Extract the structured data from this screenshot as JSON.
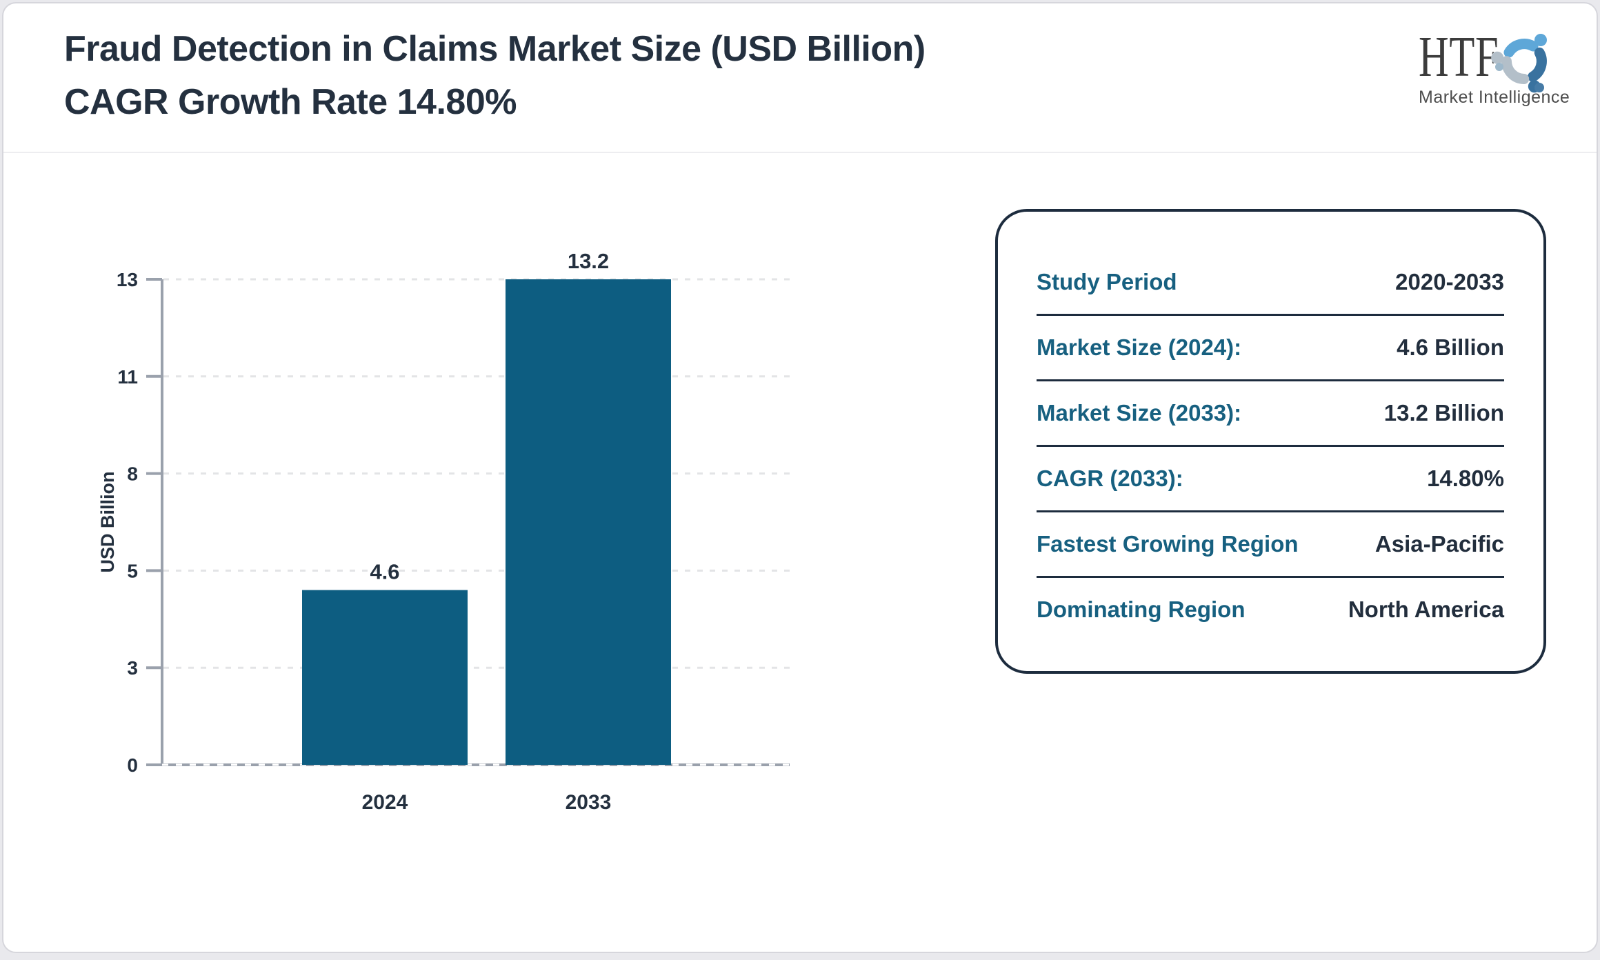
{
  "header": {
    "title": "Fraud Detection in Claims Market Size (USD Billion) CAGR Growth Rate 14.80%",
    "logo": {
      "text": "HTF",
      "subtext": "Market Intelligence",
      "colors": {
        "light_blue": "#5ea7d8",
        "steel_blue": "#39729f",
        "gray": "#b3bfc9"
      }
    }
  },
  "chart_data": {
    "type": "bar",
    "title": "Fraud Detection in Claims Market Size (USD Billion) CAGR Growth Rate 14.80%",
    "categories": [
      "2024",
      "2033"
    ],
    "values": [
      4.6,
      13.2
    ],
    "value_labels": [
      "4.6",
      "13.2"
    ],
    "xlabel": "",
    "ylabel": "USD Billion",
    "yticks": [
      0,
      3,
      5,
      8,
      11,
      13
    ],
    "ylim": [
      0,
      13
    ],
    "grid": "dashed-horizontal",
    "legend": "none",
    "bar_color": "#0d5d81"
  },
  "info_panel": {
    "rows": [
      {
        "label": "Study Period",
        "value": "2020-2033"
      },
      {
        "label": "Market Size (2024):",
        "value": "4.6 Billion"
      },
      {
        "label": "Market Size (2033):",
        "value": "13.2 Billion"
      },
      {
        "label": "CAGR (2033):",
        "value": "14.80%"
      },
      {
        "label": "Fastest Growing Region",
        "value": "Asia-Pacific"
      },
      {
        "label": "Dominating Region",
        "value": "North America"
      }
    ]
  }
}
